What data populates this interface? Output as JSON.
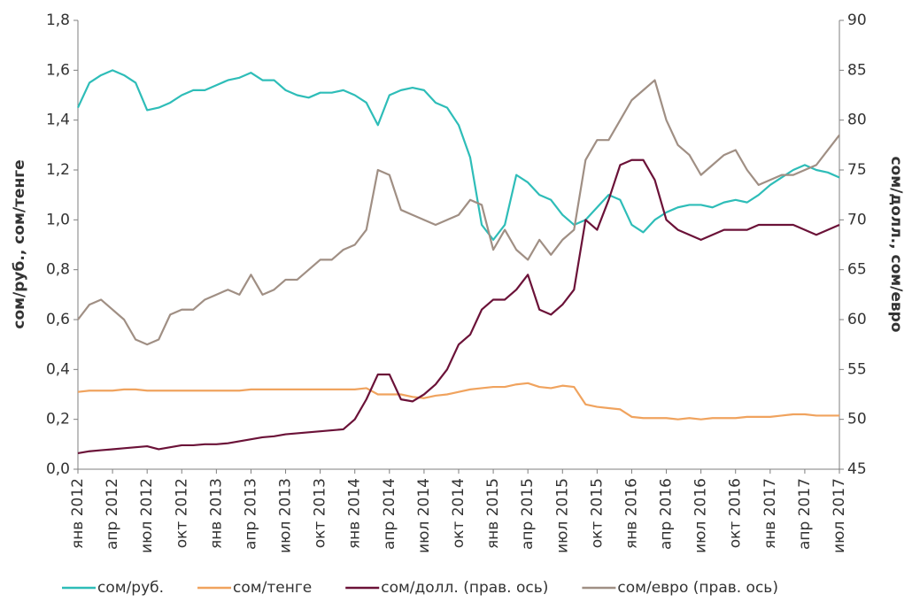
{
  "chart_data": {
    "type": "line",
    "y_label": "сом/руб., сом/тенге",
    "y2_label": "сом/долл., сом/евро",
    "categories": [
      "янв 2012",
      null,
      null,
      "апр 2012",
      null,
      null,
      "июл 2012",
      null,
      null,
      "окт 2012",
      null,
      null,
      "янв 2013",
      null,
      null,
      "апр 2013",
      null,
      null,
      "июл 2013",
      null,
      null,
      "окт 2013",
      null,
      null,
      "янв 2014",
      null,
      null,
      "апр 2014",
      null,
      null,
      "июл 2014",
      null,
      null,
      "окт 2014",
      null,
      null,
      "янв 2015",
      null,
      null,
      "апр 2015",
      null,
      null,
      "июл 2015",
      null,
      null,
      "окт 2015",
      null,
      null,
      "янв 2016",
      null,
      null,
      "апр 2016",
      null,
      null,
      "июл 2016",
      null,
      null,
      "окт 2016",
      null,
      null,
      "янв 2017",
      null,
      null,
      "апр 2017",
      null,
      null,
      "июл 2017"
    ],
    "ylim": [
      0,
      1.8
    ],
    "yticks": [
      {
        "value": 0,
        "label": "0,0"
      },
      {
        "value": 0.2,
        "label": "0,2"
      },
      {
        "value": 0.4,
        "label": "0,4"
      },
      {
        "value": 0.6,
        "label": "0,6"
      },
      {
        "value": 0.8,
        "label": "0,8"
      },
      {
        "value": 1,
        "label": "1,0"
      },
      {
        "value": 1.2,
        "label": "1,2"
      },
      {
        "value": 1.4,
        "label": "1,4"
      },
      {
        "value": 1.6,
        "label": "1,6"
      },
      {
        "value": 1.8,
        "label": "1,8"
      }
    ],
    "y2lim": [
      45,
      90
    ],
    "y2ticks": [
      45,
      50,
      55,
      60,
      65,
      70,
      75,
      80,
      85,
      90
    ],
    "legend": "bottom",
    "series": [
      {
        "name": "сом/руб.",
        "color": "#2ebdb8",
        "values": [
          1.45,
          1.55,
          1.58,
          1.6,
          1.58,
          1.55,
          1.44,
          1.45,
          1.47,
          1.5,
          1.52,
          1.52,
          1.54,
          1.56,
          1.57,
          1.59,
          1.56,
          1.56,
          1.52,
          1.5,
          1.49,
          1.51,
          1.51,
          1.52,
          1.5,
          1.47,
          1.38,
          1.5,
          1.52,
          1.53,
          1.52,
          1.47,
          1.45,
          1.38,
          1.25,
          0.98,
          0.92,
          0.98,
          1.18,
          1.15,
          1.1,
          1.08,
          1.02,
          0.98,
          1.0,
          1.05,
          1.1,
          1.08,
          0.98,
          0.95,
          1.0,
          1.03,
          1.05,
          1.06,
          1.06,
          1.05,
          1.07,
          1.08,
          1.07,
          1.1,
          1.14,
          1.17,
          1.2,
          1.22,
          1.2,
          1.19,
          1.17
        ]
      },
      {
        "name": "сом/тенге",
        "color": "#f0a35e",
        "values": [
          0.31,
          0.315,
          0.315,
          0.315,
          0.32,
          0.32,
          0.315,
          0.315,
          0.315,
          0.315,
          0.315,
          0.315,
          0.315,
          0.315,
          0.315,
          0.32,
          0.32,
          0.32,
          0.32,
          0.32,
          0.32,
          0.32,
          0.32,
          0.32,
          0.32,
          0.325,
          0.3,
          0.3,
          0.3,
          0.29,
          0.285,
          0.295,
          0.3,
          0.31,
          0.32,
          0.325,
          0.33,
          0.33,
          0.34,
          0.345,
          0.33,
          0.325,
          0.335,
          0.33,
          0.26,
          0.25,
          0.245,
          0.24,
          0.21,
          0.205,
          0.205,
          0.205,
          0.2,
          0.205,
          0.2,
          0.205,
          0.205,
          0.205,
          0.21,
          0.21,
          0.21,
          0.215,
          0.22,
          0.22,
          0.215,
          0.215,
          0.215
        ]
      },
      {
        "name": "сом/долл. (прав. ось)",
        "color": "#6b1238",
        "axis": "y2",
        "values": [
          46.6,
          46.8,
          46.9,
          47.0,
          47.1,
          47.2,
          47.3,
          47.0,
          47.2,
          47.4,
          47.4,
          47.5,
          47.5,
          47.6,
          47.8,
          48.0,
          48.2,
          48.3,
          48.5,
          48.6,
          48.7,
          48.8,
          48.9,
          49.0,
          50.0,
          52.0,
          54.5,
          54.5,
          52.0,
          51.8,
          52.5,
          53.5,
          55.0,
          57.5,
          58.5,
          61.0,
          62.0,
          62.0,
          63.0,
          64.5,
          61.0,
          60.5,
          61.5,
          63.0,
          70.0,
          69.0,
          72.0,
          75.5,
          76.0,
          76.0,
          74.0,
          70.0,
          69.0,
          68.5,
          68.0,
          68.5,
          69.0,
          69.0,
          69.0,
          69.5,
          69.5,
          69.5,
          69.5,
          69.0,
          68.5,
          69.0,
          69.5
        ]
      },
      {
        "name": "сом/евро (прав. ось)",
        "color": "#a08f84",
        "axis": "y2",
        "values": [
          60.0,
          61.5,
          62.0,
          61.0,
          60.0,
          58.0,
          57.5,
          58.0,
          60.5,
          61.0,
          61.0,
          62.0,
          62.5,
          63.0,
          62.5,
          64.5,
          62.5,
          63.0,
          64.0,
          64.0,
          65.0,
          66.0,
          66.0,
          67.0,
          67.5,
          69.0,
          75.0,
          74.5,
          71.0,
          70.5,
          70.0,
          69.5,
          70.0,
          70.5,
          72.0,
          71.5,
          67.0,
          69.0,
          67.0,
          66.0,
          68.0,
          66.5,
          68.0,
          69.0,
          76.0,
          78.0,
          78.0,
          80.0,
          82.0,
          83.0,
          84.0,
          80.0,
          77.5,
          76.5,
          74.5,
          75.5,
          76.5,
          77.0,
          75.0,
          73.5,
          74.0,
          74.5,
          74.5,
          75.0,
          75.5,
          77.0,
          78.5
        ]
      }
    ]
  }
}
